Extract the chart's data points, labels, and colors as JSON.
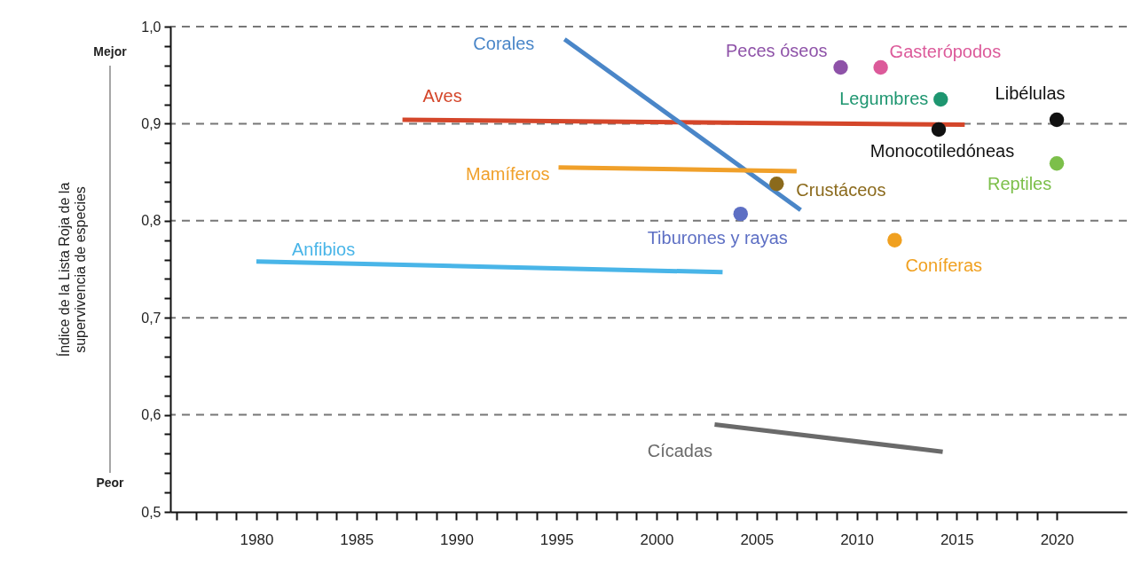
{
  "chart_data": {
    "type": "line",
    "ylabel": "Índice de la Lista Roja de la\nsupervivencia de especies",
    "annotations": [
      "Mejor",
      "Peor"
    ],
    "legend": false,
    "grid": "y",
    "xlim": [
      1975.7,
      2023.5
    ],
    "ylim": [
      0.5,
      1.0
    ],
    "xticks": [
      {
        "value": 1976,
        "label": null
      },
      {
        "value": 1977,
        "label": null
      },
      {
        "value": 1978,
        "label": null
      },
      {
        "value": 1979,
        "label": null
      },
      1980,
      {
        "value": 1981,
        "label": null
      },
      {
        "value": 1982,
        "label": null
      },
      {
        "value": 1983,
        "label": null
      },
      {
        "value": 1984,
        "label": null
      },
      1985,
      {
        "value": 1986,
        "label": null
      },
      {
        "value": 1987,
        "label": null
      },
      {
        "value": 1988,
        "label": null
      },
      {
        "value": 1989,
        "label": null
      },
      1990,
      {
        "value": 1991,
        "label": null
      },
      {
        "value": 1992,
        "label": null
      },
      {
        "value": 1993,
        "label": null
      },
      {
        "value": 1994,
        "label": null
      },
      1995,
      {
        "value": 1996,
        "label": null
      },
      {
        "value": 1997,
        "label": null
      },
      {
        "value": 1998,
        "label": null
      },
      {
        "value": 1999,
        "label": null
      },
      2000,
      {
        "value": 2001,
        "label": null
      },
      {
        "value": 2002,
        "label": null
      },
      {
        "value": 2003,
        "label": null
      },
      {
        "value": 2004,
        "label": null
      },
      2005,
      {
        "value": 2006,
        "label": null
      },
      {
        "value": 2007,
        "label": null
      },
      {
        "value": 2008,
        "label": null
      },
      {
        "value": 2009,
        "label": null
      },
      2010,
      {
        "value": 2011,
        "label": null
      },
      {
        "value": 2012,
        "label": null
      },
      {
        "value": 2013,
        "label": null
      },
      {
        "value": 2014,
        "label": null
      },
      2015,
      {
        "value": 2016,
        "label": null
      },
      {
        "value": 2017,
        "label": null
      },
      {
        "value": 2018,
        "label": null
      },
      {
        "value": 2019,
        "label": null
      },
      2020
    ],
    "yticks": [
      {
        "value": 0.5,
        "label": "0,5"
      },
      {
        "value": 0.52,
        "label": null
      },
      {
        "value": 0.54,
        "label": null
      },
      {
        "value": 0.56,
        "label": null
      },
      {
        "value": 0.58,
        "label": null
      },
      {
        "value": 0.6,
        "label": "0,6"
      },
      {
        "value": 0.62,
        "label": null
      },
      {
        "value": 0.64,
        "label": null
      },
      {
        "value": 0.66,
        "label": null
      },
      {
        "value": 0.68,
        "label": null
      },
      {
        "value": 0.7,
        "label": "0,7"
      },
      {
        "value": 0.72,
        "label": null
      },
      {
        "value": 0.74,
        "label": null
      },
      {
        "value": 0.76,
        "label": null
      },
      {
        "value": 0.78,
        "label": null
      },
      {
        "value": 0.8,
        "label": "0,8"
      },
      {
        "value": 0.82,
        "label": null
      },
      {
        "value": 0.84,
        "label": null
      },
      {
        "value": 0.86,
        "label": null
      },
      {
        "value": 0.88,
        "label": null
      },
      {
        "value": 0.9,
        "label": "0,9"
      },
      {
        "value": 0.92,
        "label": null
      },
      {
        "value": 0.94,
        "label": null
      },
      {
        "value": 0.96,
        "label": null
      },
      {
        "value": 0.98,
        "label": null
      },
      {
        "value": 1.0,
        "label": "1,0"
      }
    ],
    "series": [
      {
        "name": "Aves",
        "type": "line",
        "color": "#d4462a",
        "x": [
          1987.3,
          2015.4
        ],
        "values": [
          0.904,
          0.899
        ]
      },
      {
        "name": "Corales",
        "type": "line",
        "color": "#4a86c8",
        "x": [
          1995.4,
          2007.2
        ],
        "values": [
          0.987,
          0.811
        ]
      },
      {
        "name": "Mamíferos",
        "type": "line",
        "color": "#f0a02a",
        "x": [
          1995.1,
          2007.0
        ],
        "values": [
          0.855,
          0.851
        ]
      },
      {
        "name": "Anfibios",
        "type": "line",
        "color": "#49b5e8",
        "x": [
          1980.0,
          2003.3
        ],
        "values": [
          0.758,
          0.747
        ]
      },
      {
        "name": "Cícadas",
        "type": "line",
        "color": "#6a6a6a",
        "x": [
          2002.9,
          2014.3
        ],
        "values": [
          0.59,
          0.562
        ]
      },
      {
        "name": "Peces óseos",
        "type": "scatter",
        "color": "#8e52a8",
        "x": [
          2009.2
        ],
        "values": [
          0.958
        ]
      },
      {
        "name": "Gasterópodos",
        "type": "scatter",
        "color": "#dc5a9a",
        "x": [
          2011.2
        ],
        "values": [
          0.958
        ]
      },
      {
        "name": "Legumbres",
        "type": "scatter",
        "color": "#1e9670",
        "x": [
          2014.2
        ],
        "values": [
          0.925
        ]
      },
      {
        "name": "Monocotiledóneas",
        "type": "scatter",
        "color": "#111111",
        "x": [
          2014.1
        ],
        "values": [
          0.894
        ]
      },
      {
        "name": "Libélulas",
        "type": "scatter",
        "color": "#111111",
        "x": [
          2020.0
        ],
        "values": [
          0.904
        ]
      },
      {
        "name": "Reptiles",
        "type": "scatter",
        "color": "#7cbf4a",
        "x": [
          2020.0
        ],
        "values": [
          0.859
        ]
      },
      {
        "name": "Crustáceos",
        "type": "scatter",
        "color": "#8b6a1c",
        "x": [
          2006.0
        ],
        "values": [
          0.838
        ]
      },
      {
        "name": "Tiburones y rayas",
        "type": "scatter",
        "color": "#5d6fc4",
        "x": [
          2004.2
        ],
        "values": [
          0.807
        ]
      },
      {
        "name": "Coníferas",
        "type": "scatter",
        "color": "#f0a020",
        "x": [
          2011.9
        ],
        "values": [
          0.78
        ]
      }
    ]
  }
}
